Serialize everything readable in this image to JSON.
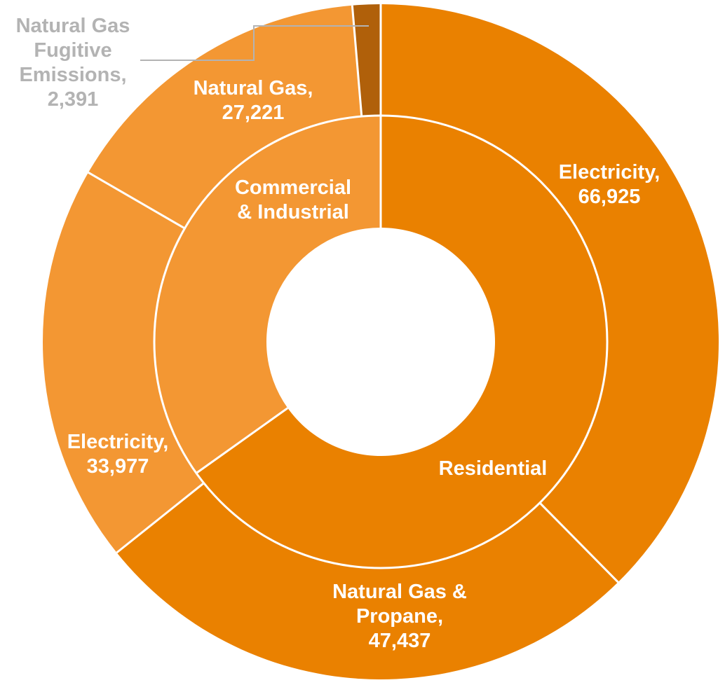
{
  "chart_data": {
    "type": "sunburst",
    "title": "",
    "inner_ring": [
      {
        "name": "Residential",
        "label_lines": [
          "Residential"
        ],
        "value": 114362,
        "color": "#ea8100"
      },
      {
        "name": "Commercial & Industrial",
        "label_lines": [
          "Commercial",
          "& Industrial"
        ],
        "value": 61198,
        "color": "#f39733"
      }
    ],
    "outer_ring": [
      {
        "parent": "Residential",
        "name": "Electricity",
        "value": 66925,
        "label_lines": [
          "Electricity,",
          "66,925"
        ],
        "color": "#ea8100",
        "label_style": "inside"
      },
      {
        "parent": "Residential",
        "name": "Natural Gas & Propane",
        "value": 47437,
        "label_lines": [
          "Natural Gas &",
          "Propane,",
          "47,437"
        ],
        "color": "#ea8100",
        "label_style": "inside"
      },
      {
        "parent": "Commercial & Industrial",
        "name": "Electricity",
        "value": 33977,
        "label_lines": [
          "Electricity,",
          "33,977"
        ],
        "color": "#f39733",
        "label_style": "inside"
      },
      {
        "parent": "Commercial & Industrial",
        "name": "Natural Gas",
        "value": 27221,
        "label_lines": [
          "Natural Gas,",
          "27,221"
        ],
        "color": "#f39733",
        "label_style": "inside"
      },
      {
        "parent": "Commercial & Industrial",
        "name": "Natural Gas Fugitive Emissions",
        "value": 2391,
        "label_lines": [
          "Natural Gas",
          "Fugitive",
          "Emissions,",
          "2,391"
        ],
        "color": "#b0600a",
        "label_style": "outside"
      }
    ],
    "colors": {
      "residential": "#ea8100",
      "commercial_industrial": "#f39733",
      "fugitive": "#b0600a",
      "outside_label": "#b3b3b3",
      "separator": "#ffffff"
    },
    "legend": "none",
    "grid": false
  }
}
